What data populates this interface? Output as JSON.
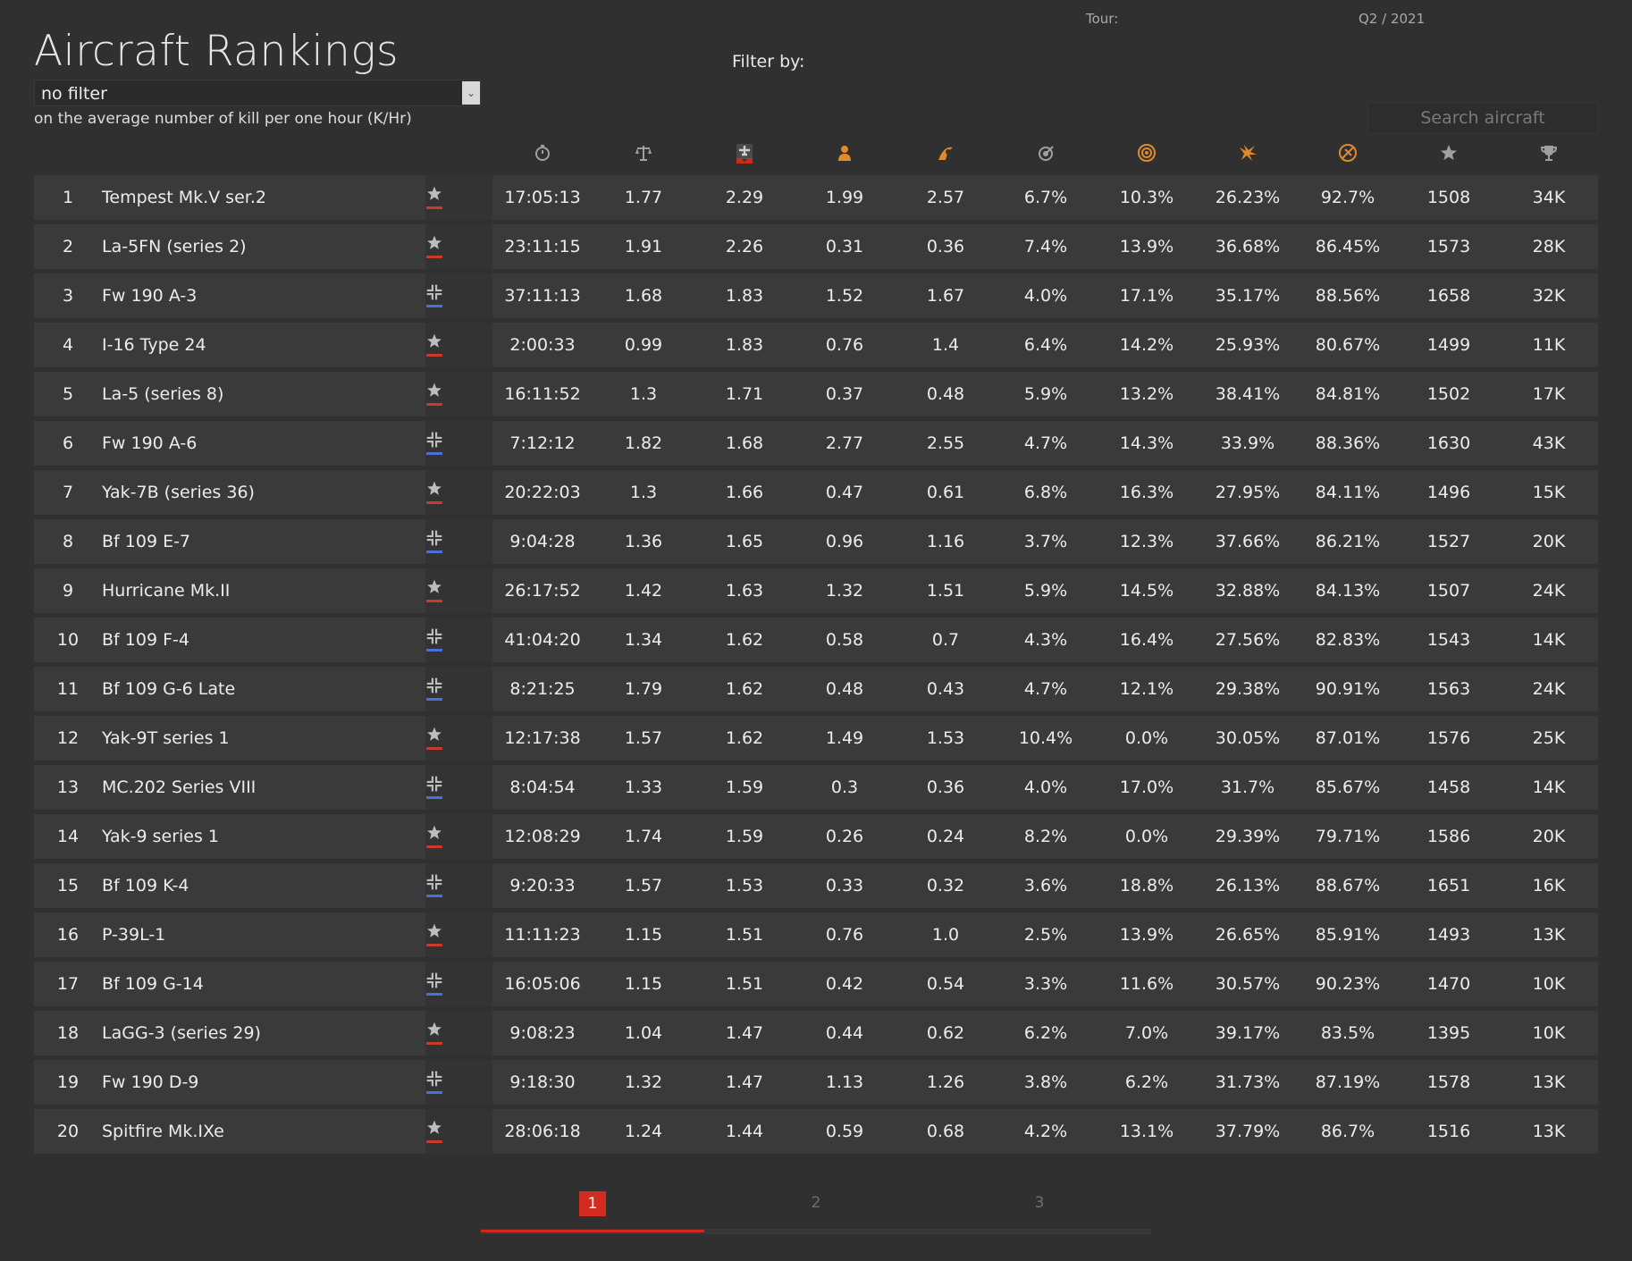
{
  "header": {
    "title": "Aircraft Rankings",
    "tour_label": "Tour:",
    "tour_value": "Q2 / 2021",
    "filter_select_value": "no filter",
    "subtitle": "on the average number of kill per one hour (K/Hr)",
    "filter_label": "Filter by:",
    "search_placeholder": "Search aircraft"
  },
  "columns": [
    {
      "icon": "stopwatch-icon",
      "color": "#a0a0a0"
    },
    {
      "icon": "balance-scale-icon",
      "color": "#a0a0a0"
    },
    {
      "icon": "aircraft-kill-icon",
      "color": "#cfcfcf",
      "active_color": "#d0281e"
    },
    {
      "icon": "pilot-icon",
      "color": "#e08a2a"
    },
    {
      "icon": "ground-target-icon",
      "color": "#e08a2a"
    },
    {
      "icon": "accuracy-icon",
      "color": "#a0a0a0"
    },
    {
      "icon": "target-rings-icon",
      "color": "#e08a2a"
    },
    {
      "icon": "crash-icon",
      "color": "#e08a2a"
    },
    {
      "icon": "survival-icon",
      "color": "#e08a2a"
    },
    {
      "icon": "star-rating-icon",
      "color": "#a0a0a0"
    },
    {
      "icon": "trophy-icon",
      "color": "#a0a0a0"
    }
  ],
  "nations": {
    "allied": {
      "icon": "red-star-icon",
      "stripe_color": "#c83a2c"
    },
    "axis": {
      "icon": "balkenkreuz-icon",
      "stripe_color": "#4a6fd8"
    }
  },
  "rows": [
    {
      "rank": "1",
      "name": "Tempest Mk.V ser.2",
      "nation": "allied",
      "values": [
        "17:05:13",
        "1.77",
        "2.29",
        "1.99",
        "2.57",
        "6.7%",
        "10.3%",
        "26.23%",
        "92.7%",
        "1508",
        "34K"
      ]
    },
    {
      "rank": "2",
      "name": "La-5FN (series 2)",
      "nation": "allied",
      "values": [
        "23:11:15",
        "1.91",
        "2.26",
        "0.31",
        "0.36",
        "7.4%",
        "13.9%",
        "36.68%",
        "86.45%",
        "1573",
        "28K"
      ]
    },
    {
      "rank": "3",
      "name": "Fw 190 A-3",
      "nation": "axis",
      "values": [
        "37:11:13",
        "1.68",
        "1.83",
        "1.52",
        "1.67",
        "4.0%",
        "17.1%",
        "35.17%",
        "88.56%",
        "1658",
        "32K"
      ]
    },
    {
      "rank": "4",
      "name": "I-16 Type 24",
      "nation": "allied",
      "values": [
        "2:00:33",
        "0.99",
        "1.83",
        "0.76",
        "1.4",
        "6.4%",
        "14.2%",
        "25.93%",
        "80.67%",
        "1499",
        "11K"
      ]
    },
    {
      "rank": "5",
      "name": "La-5 (series 8)",
      "nation": "allied",
      "values": [
        "16:11:52",
        "1.3",
        "1.71",
        "0.37",
        "0.48",
        "5.9%",
        "13.2%",
        "38.41%",
        "84.81%",
        "1502",
        "17K"
      ]
    },
    {
      "rank": "6",
      "name": "Fw 190 A-6",
      "nation": "axis",
      "values": [
        "7:12:12",
        "1.82",
        "1.68",
        "2.77",
        "2.55",
        "4.7%",
        "14.3%",
        "33.9%",
        "88.36%",
        "1630",
        "43K"
      ]
    },
    {
      "rank": "7",
      "name": "Yak-7B (series 36)",
      "nation": "allied",
      "values": [
        "20:22:03",
        "1.3",
        "1.66",
        "0.47",
        "0.61",
        "6.8%",
        "16.3%",
        "27.95%",
        "84.11%",
        "1496",
        "15K"
      ]
    },
    {
      "rank": "8",
      "name": "Bf 109 E-7",
      "nation": "axis",
      "values": [
        "9:04:28",
        "1.36",
        "1.65",
        "0.96",
        "1.16",
        "3.7%",
        "12.3%",
        "37.66%",
        "86.21%",
        "1527",
        "20K"
      ]
    },
    {
      "rank": "9",
      "name": "Hurricane Mk.II",
      "nation": "allied",
      "values": [
        "26:17:52",
        "1.42",
        "1.63",
        "1.32",
        "1.51",
        "5.9%",
        "14.5%",
        "32.88%",
        "84.13%",
        "1507",
        "24K"
      ]
    },
    {
      "rank": "10",
      "name": "Bf 109 F-4",
      "nation": "axis",
      "values": [
        "41:04:20",
        "1.34",
        "1.62",
        "0.58",
        "0.7",
        "4.3%",
        "16.4%",
        "27.56%",
        "82.83%",
        "1543",
        "14K"
      ]
    },
    {
      "rank": "11",
      "name": "Bf 109 G-6 Late",
      "nation": "axis",
      "values": [
        "8:21:25",
        "1.79",
        "1.62",
        "0.48",
        "0.43",
        "4.7%",
        "12.1%",
        "29.38%",
        "90.91%",
        "1563",
        "24K"
      ]
    },
    {
      "rank": "12",
      "name": "Yak-9T series 1",
      "nation": "allied",
      "values": [
        "12:17:38",
        "1.57",
        "1.62",
        "1.49",
        "1.53",
        "10.4%",
        "0.0%",
        "30.05%",
        "87.01%",
        "1576",
        "25K"
      ]
    },
    {
      "rank": "13",
      "name": "MC.202 Series VIII",
      "nation": "axis",
      "values": [
        "8:04:54",
        "1.33",
        "1.59",
        "0.3",
        "0.36",
        "4.0%",
        "17.0%",
        "31.7%",
        "85.67%",
        "1458",
        "14K"
      ]
    },
    {
      "rank": "14",
      "name": "Yak-9 series 1",
      "nation": "allied",
      "values": [
        "12:08:29",
        "1.74",
        "1.59",
        "0.26",
        "0.24",
        "8.2%",
        "0.0%",
        "29.39%",
        "79.71%",
        "1586",
        "20K"
      ]
    },
    {
      "rank": "15",
      "name": "Bf 109 K-4",
      "nation": "axis",
      "values": [
        "9:20:33",
        "1.57",
        "1.53",
        "0.33",
        "0.32",
        "3.6%",
        "18.8%",
        "26.13%",
        "88.67%",
        "1651",
        "16K"
      ]
    },
    {
      "rank": "16",
      "name": "P-39L-1",
      "nation": "allied",
      "values": [
        "11:11:23",
        "1.15",
        "1.51",
        "0.76",
        "1.0",
        "2.5%",
        "13.9%",
        "26.65%",
        "85.91%",
        "1493",
        "13K"
      ]
    },
    {
      "rank": "17",
      "name": "Bf 109 G-14",
      "nation": "axis",
      "values": [
        "16:05:06",
        "1.15",
        "1.51",
        "0.42",
        "0.54",
        "3.3%",
        "11.6%",
        "30.57%",
        "90.23%",
        "1470",
        "10K"
      ]
    },
    {
      "rank": "18",
      "name": "LaGG-3 (series 29)",
      "nation": "allied",
      "values": [
        "9:08:23",
        "1.04",
        "1.47",
        "0.44",
        "0.62",
        "6.2%",
        "7.0%",
        "39.17%",
        "83.5%",
        "1395",
        "10K"
      ]
    },
    {
      "rank": "19",
      "name": "Fw 190 D-9",
      "nation": "axis",
      "values": [
        "9:18:30",
        "1.32",
        "1.47",
        "1.13",
        "1.26",
        "3.8%",
        "6.2%",
        "31.73%",
        "87.19%",
        "1578",
        "13K"
      ]
    },
    {
      "rank": "20",
      "name": "Spitfire Mk.IXe",
      "nation": "allied",
      "values": [
        "28:06:18",
        "1.24",
        "1.44",
        "0.59",
        "0.68",
        "4.2%",
        "13.1%",
        "37.79%",
        "86.7%",
        "1516",
        "13K"
      ]
    }
  ],
  "pagination": {
    "pages": [
      "1",
      "2",
      "3"
    ],
    "current": "1",
    "accent_color": "#d42b20"
  }
}
